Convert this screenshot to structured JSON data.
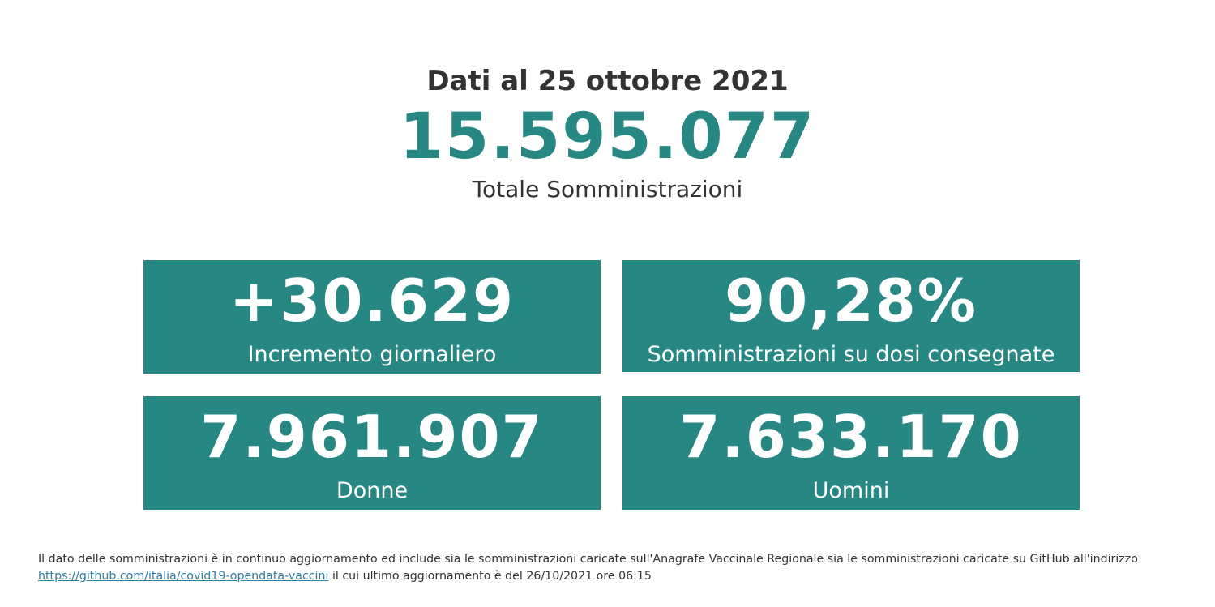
{
  "header": {
    "date_title": "Dati al 25 ottobre 2021",
    "total_value": "15.595.077",
    "total_label": "Totale Somministrazioni"
  },
  "cards": [
    {
      "value": "+30.629",
      "label": "Incremento giornaliero"
    },
    {
      "value": "90,28%",
      "label": "Somministrazioni su dosi consegnate"
    },
    {
      "value": "7.961.907",
      "label": "Donne"
    },
    {
      "value": "7.633.170",
      "label": "Uomini"
    }
  ],
  "footnote": {
    "text_before": "Il dato delle somministrazioni è in continuo aggiornamento ed include sia le somministrazioni caricate sull'Anagrafe Vaccinale Regionale sia le somministrazioni caricate su GitHub all'indirizzo",
    "link_text": "https://github.com/italia/covid19-opendata-vaccini",
    "text_after": " il cui ultimo aggiornamento è del 26/10/2021 ore 06:15"
  },
  "colors": {
    "accent": "#278783",
    "text": "#333333",
    "link": "#2a7fa8"
  }
}
